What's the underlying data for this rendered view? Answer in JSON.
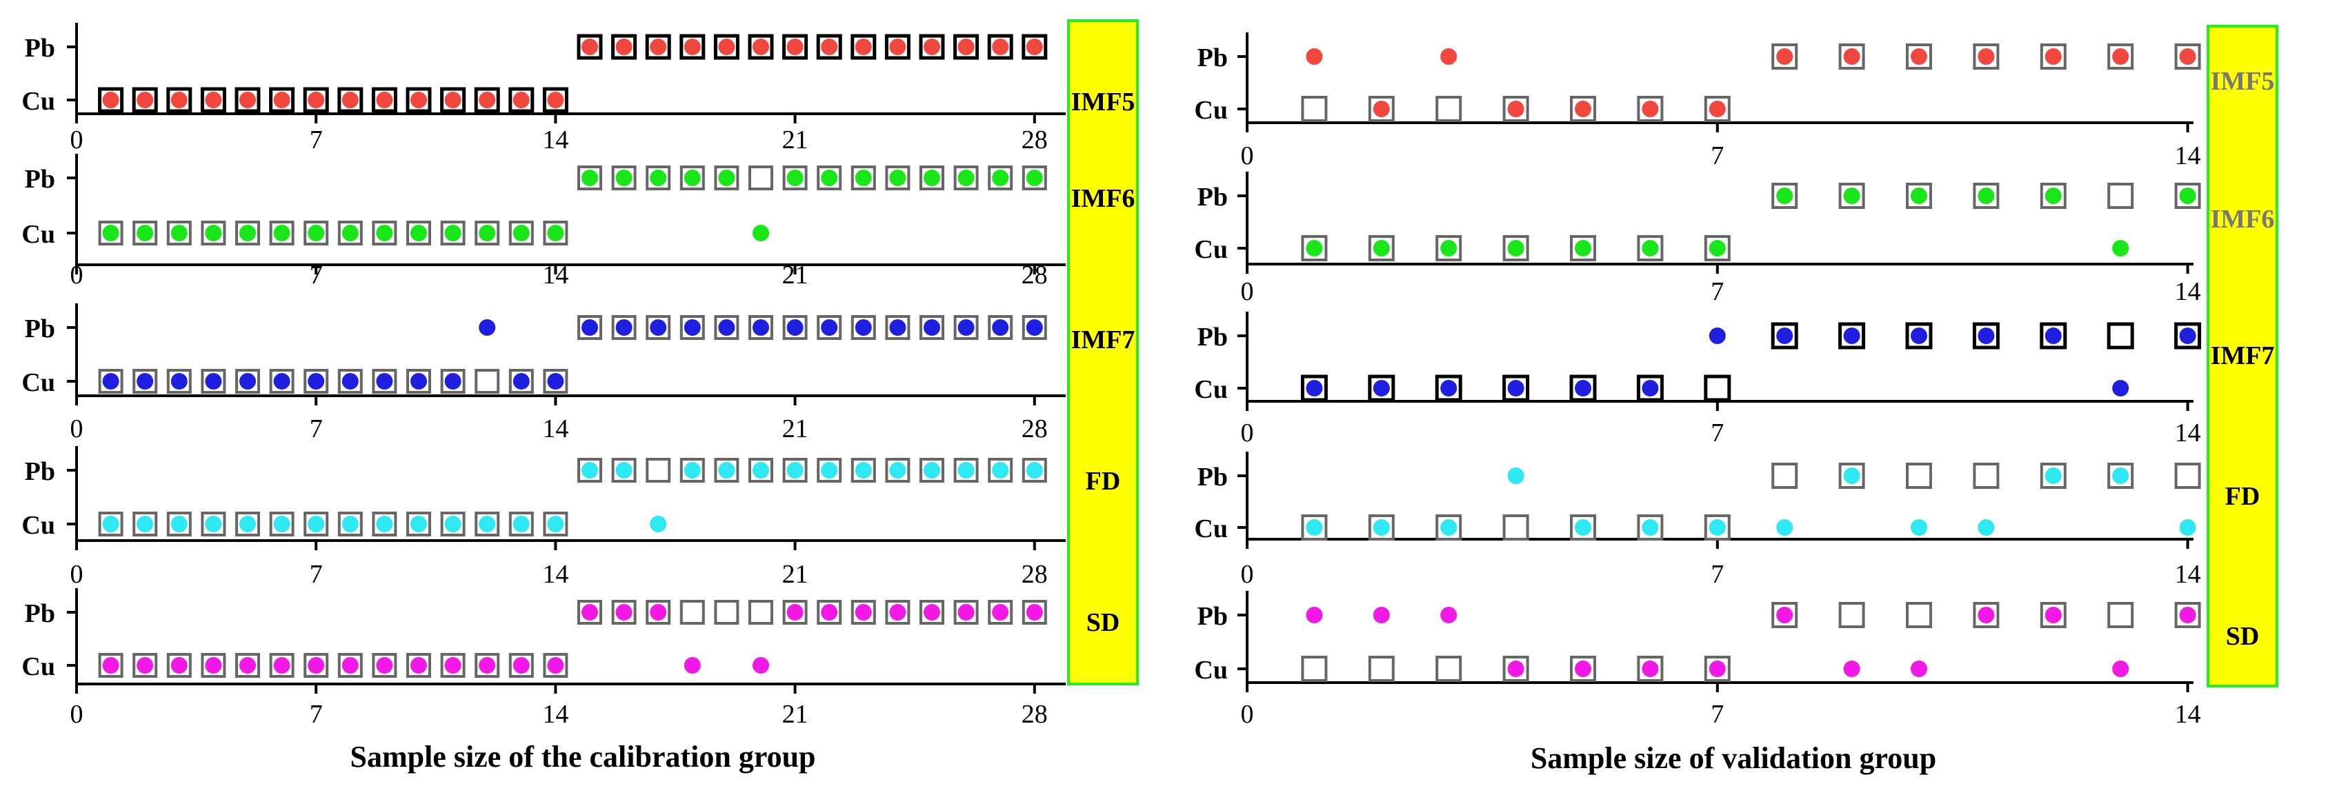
{
  "colors": {
    "IMF5": "#f0483e",
    "IMF6": "#19e619",
    "IMF7": "#1f1fe0",
    "FD": "#2ee8f2",
    "SD": "#f219e6",
    "legend_fill": "#ffff00",
    "legend_border": "#22ee22",
    "box_stroke": "#666666",
    "box_stroke_bold": "#000000"
  },
  "chart_data": [
    {
      "id": "calibration",
      "type": "scatter",
      "xlabel": "Sample size of the calibration group",
      "xlim": [
        0,
        28.5
      ],
      "xticks": [
        0,
        7,
        14,
        21,
        28
      ],
      "row_labels": [
        "Pb",
        "Cu"
      ],
      "legend_labels": [
        "IMF5",
        "IMF6",
        "IMF7",
        "FD",
        "SD"
      ],
      "panels": [
        {
          "name": "IMF5",
          "boxes": {
            "Pb": [
              15,
              16,
              17,
              18,
              19,
              20,
              21,
              22,
              23,
              24,
              25,
              26,
              27,
              28
            ],
            "Cu": [
              1,
              2,
              3,
              4,
              5,
              6,
              7,
              8,
              9,
              10,
              11,
              12,
              13,
              14
            ]
          },
          "dots": {
            "Pb": [
              15,
              16,
              17,
              18,
              19,
              20,
              21,
              22,
              23,
              24,
              25,
              26,
              27,
              28
            ],
            "Cu": [
              1,
              2,
              3,
              4,
              5,
              6,
              7,
              8,
              9,
              10,
              11,
              12,
              13,
              14
            ]
          },
          "bold_boxes": true
        },
        {
          "name": "IMF6",
          "boxes": {
            "Pb": [
              15,
              16,
              17,
              18,
              19,
              20,
              21,
              22,
              23,
              24,
              25,
              26,
              27,
              28
            ],
            "Cu": [
              1,
              2,
              3,
              4,
              5,
              6,
              7,
              8,
              9,
              10,
              11,
              12,
              13,
              14
            ]
          },
          "dots": {
            "Pb": [
              15,
              16,
              17,
              18,
              19,
              21,
              22,
              23,
              24,
              25,
              26,
              27,
              28
            ],
            "Cu": [
              1,
              2,
              3,
              4,
              5,
              6,
              7,
              8,
              9,
              10,
              11,
              12,
              13,
              14,
              20
            ]
          },
          "bold_boxes": false
        },
        {
          "name": "IMF7",
          "boxes": {
            "Pb": [
              15,
              16,
              17,
              18,
              19,
              20,
              21,
              22,
              23,
              24,
              25,
              26,
              27,
              28
            ],
            "Cu": [
              1,
              2,
              3,
              4,
              5,
              6,
              7,
              8,
              9,
              10,
              11,
              12,
              13,
              14
            ]
          },
          "dots": {
            "Pb": [
              12,
              15,
              16,
              17,
              18,
              19,
              20,
              21,
              22,
              23,
              24,
              25,
              26,
              27,
              28
            ],
            "Cu": [
              1,
              2,
              3,
              4,
              5,
              6,
              7,
              8,
              9,
              10,
              11,
              13,
              14
            ]
          },
          "bold_boxes": false
        },
        {
          "name": "FD",
          "boxes": {
            "Pb": [
              15,
              16,
              17,
              18,
              19,
              20,
              21,
              22,
              23,
              24,
              25,
              26,
              27,
              28
            ],
            "Cu": [
              1,
              2,
              3,
              4,
              5,
              6,
              7,
              8,
              9,
              10,
              11,
              12,
              13,
              14
            ]
          },
          "dots": {
            "Pb": [
              15,
              16,
              18,
              19,
              20,
              21,
              22,
              23,
              24,
              25,
              26,
              27,
              28
            ],
            "Cu": [
              1,
              2,
              3,
              4,
              5,
              6,
              7,
              8,
              9,
              10,
              11,
              12,
              13,
              14,
              17
            ]
          },
          "bold_boxes": false
        },
        {
          "name": "SD",
          "boxes": {
            "Pb": [
              15,
              16,
              17,
              18,
              19,
              20,
              21,
              22,
              23,
              24,
              25,
              26,
              27,
              28
            ],
            "Cu": [
              1,
              2,
              3,
              4,
              5,
              6,
              7,
              8,
              9,
              10,
              11,
              12,
              13,
              14
            ]
          },
          "dots": {
            "Pb": [
              15,
              16,
              17,
              21,
              22,
              23,
              24,
              25,
              26,
              27,
              28
            ],
            "Cu": [
              1,
              2,
              3,
              4,
              5,
              6,
              7,
              8,
              9,
              10,
              11,
              12,
              13,
              14,
              18,
              20
            ]
          },
          "bold_boxes": false
        }
      ]
    },
    {
      "id": "validation",
      "type": "scatter",
      "xlabel": "Sample size of validation group",
      "xlim": [
        0,
        14.3
      ],
      "xticks": [
        0,
        7,
        14
      ],
      "row_labels": [
        "Pb",
        "Cu"
      ],
      "legend_labels": [
        "IMF5",
        "IMF6",
        "IMF7",
        "FD",
        "SD"
      ],
      "panels": [
        {
          "name": "IMF5",
          "boxes": {
            "Pb": [
              8,
              9,
              10,
              11,
              12,
              13,
              14
            ],
            "Cu": [
              1,
              2,
              3,
              4,
              5,
              6,
              7
            ]
          },
          "dots": {
            "Pb": [
              1,
              3,
              8,
              9,
              10,
              11,
              12,
              13,
              14
            ],
            "Cu": [
              2,
              4,
              5,
              6,
              7
            ]
          },
          "bold_boxes": false
        },
        {
          "name": "IMF6",
          "boxes": {
            "Pb": [
              8,
              9,
              10,
              11,
              12,
              13,
              14
            ],
            "Cu": [
              1,
              2,
              3,
              4,
              5,
              6,
              7
            ]
          },
          "dots": {
            "Pb": [
              8,
              9,
              10,
              11,
              12,
              14
            ],
            "Cu": [
              1,
              2,
              3,
              4,
              5,
              6,
              7,
              13
            ]
          },
          "bold_boxes": false
        },
        {
          "name": "IMF7",
          "boxes": {
            "Pb": [
              8,
              9,
              10,
              11,
              12,
              13,
              14
            ],
            "Cu": [
              1,
              2,
              3,
              4,
              5,
              6,
              7
            ]
          },
          "dots": {
            "Pb": [
              7,
              8,
              9,
              10,
              11,
              12,
              14
            ],
            "Cu": [
              1,
              2,
              3,
              4,
              5,
              6,
              13
            ]
          },
          "bold_boxes": true
        },
        {
          "name": "FD",
          "boxes": {
            "Pb": [
              8,
              9,
              10,
              11,
              12,
              13,
              14
            ],
            "Cu": [
              1,
              2,
              3,
              4,
              5,
              6,
              7
            ]
          },
          "dots": {
            "Pb": [
              4,
              9,
              12,
              13
            ],
            "Cu": [
              1,
              2,
              3,
              5,
              6,
              7,
              8,
              10,
              11,
              14
            ]
          },
          "bold_boxes": false
        },
        {
          "name": "SD",
          "boxes": {
            "Pb": [
              8,
              9,
              10,
              11,
              12,
              13,
              14
            ],
            "Cu": [
              1,
              2,
              3,
              4,
              5,
              6,
              7
            ]
          },
          "dots": {
            "Pb": [
              1,
              2,
              3,
              8,
              11,
              12,
              14
            ],
            "Cu": [
              4,
              5,
              6,
              7,
              9,
              10,
              13
            ]
          },
          "bold_boxes": false
        }
      ]
    }
  ]
}
